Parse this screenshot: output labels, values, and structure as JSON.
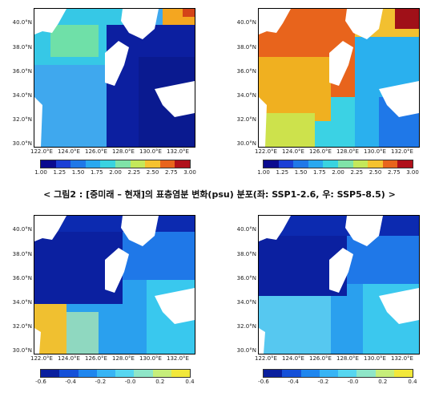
{
  "caption": "< 그림2 : [중미래 – 현재]의 표층염분 변화(psu) 분포(좌: SSP1-2.6, 우: SSP5-8.5) >",
  "lat_ticks": [
    "40.0°N",
    "38.0°N",
    "36.0°N",
    "34.0°N",
    "32.0°N",
    "30.0°N"
  ],
  "lon_ticks": [
    "122.0°E",
    "124.0°E",
    "126.0°E",
    "128.0°E",
    "130.0°E",
    "132.0°E"
  ],
  "colorbar_top": [
    "1.00",
    "1.25",
    "1.50",
    "1.75",
    "2.00",
    "2.25",
    "2.50",
    "2.75",
    "3.00"
  ],
  "colorbar_bottom": [
    "-0.6",
    "-0.4",
    "-0.2",
    "-0.0",
    "0.2",
    "0.4"
  ],
  "colors": {
    "land": "#ffffff",
    "scale_top": [
      "#0b0b8f",
      "#1b3fd6",
      "#1f78e8",
      "#2aa8f0",
      "#39d3e0",
      "#7fe3a8",
      "#c4e85a",
      "#f5c230",
      "#e8641c",
      "#b0101a"
    ],
    "scale_bottom": [
      "#0a1f9e",
      "#1550d8",
      "#1f86ee",
      "#37b4f5",
      "#56d6f0",
      "#8fe6c8",
      "#c6ee7a",
      "#f2e83a"
    ]
  }
}
